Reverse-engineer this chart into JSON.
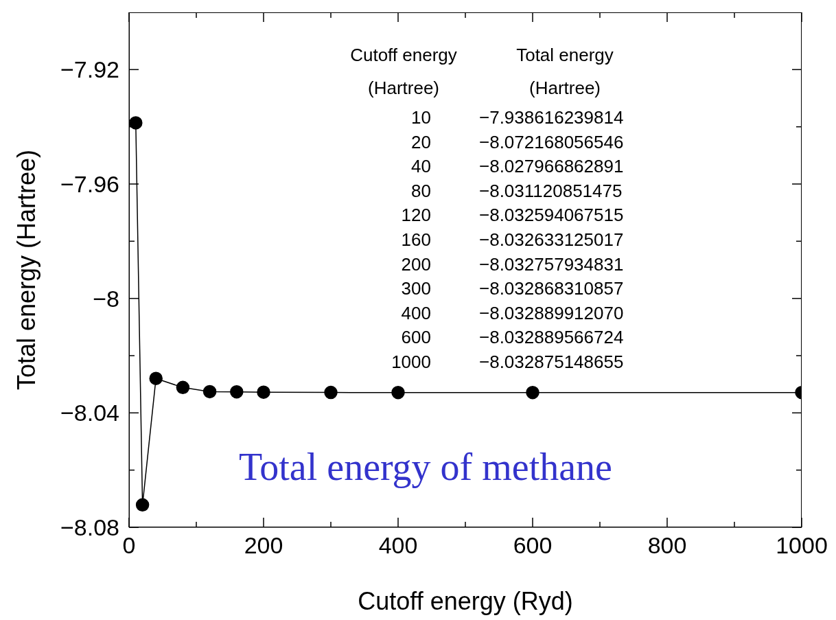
{
  "chart_data": {
    "type": "line",
    "xlabel": "Cutoff energy (Ryd)",
    "ylabel": "Total energy (Hartree)",
    "x": [
      10,
      20,
      40,
      80,
      120,
      160,
      200,
      300,
      400,
      600,
      1000
    ],
    "series": [
      {
        "color": "#000000",
        "values": [
          -7.938616239814,
          -8.072168056546,
          -8.027966862891,
          -8.031120851475,
          -8.032594067515,
          -8.032633125017,
          -8.032757934831,
          -8.032868310857,
          -8.03288991207,
          -8.032889566724,
          -8.032875148655
        ]
      }
    ],
    "xlim": [
      0,
      1000
    ],
    "xticks": [
      0,
      {
        "value": 100,
        "label": null
      },
      200,
      {
        "value": 300,
        "label": null
      },
      400,
      {
        "value": 500,
        "label": null
      },
      600,
      {
        "value": 700,
        "label": null
      },
      800,
      {
        "value": 900,
        "label": null
      },
      1000
    ],
    "ylim": [
      -8.08,
      -7.9
    ],
    "yticks": [
      {
        "value": -8.08,
        "label": "−8.08"
      },
      {
        "value": -8.06,
        "label": null
      },
      {
        "value": -8.04,
        "label": "−8.04"
      },
      {
        "value": -8.02,
        "label": null
      },
      {
        "value": -8,
        "label": "−8"
      },
      {
        "value": -7.98,
        "label": null
      },
      {
        "value": -7.96,
        "label": "−7.96"
      },
      {
        "value": -7.94,
        "label": null
      },
      {
        "value": -7.92,
        "label": "−7.92"
      }
    ],
    "marker": "circle",
    "line_style": "solid",
    "grid": false,
    "legend": false,
    "annotations": [
      "Cutoff energy\n(Hartree)",
      "Total energy\n(Hartree)",
      "10",
      "−7.938616239814",
      "20",
      "−8.072168056546",
      "40",
      "−8.027966862891",
      "80",
      "−8.031120851475",
      "120",
      "−8.032594067515",
      "160",
      "−8.032633125017",
      "200",
      "−8.032757934831",
      "300",
      "−8.032868310857",
      "400",
      "−8.032889912070",
      "600",
      "−8.032889566724",
      "1000",
      "−8.032875148655",
      "Total energy of methane"
    ]
  }
}
